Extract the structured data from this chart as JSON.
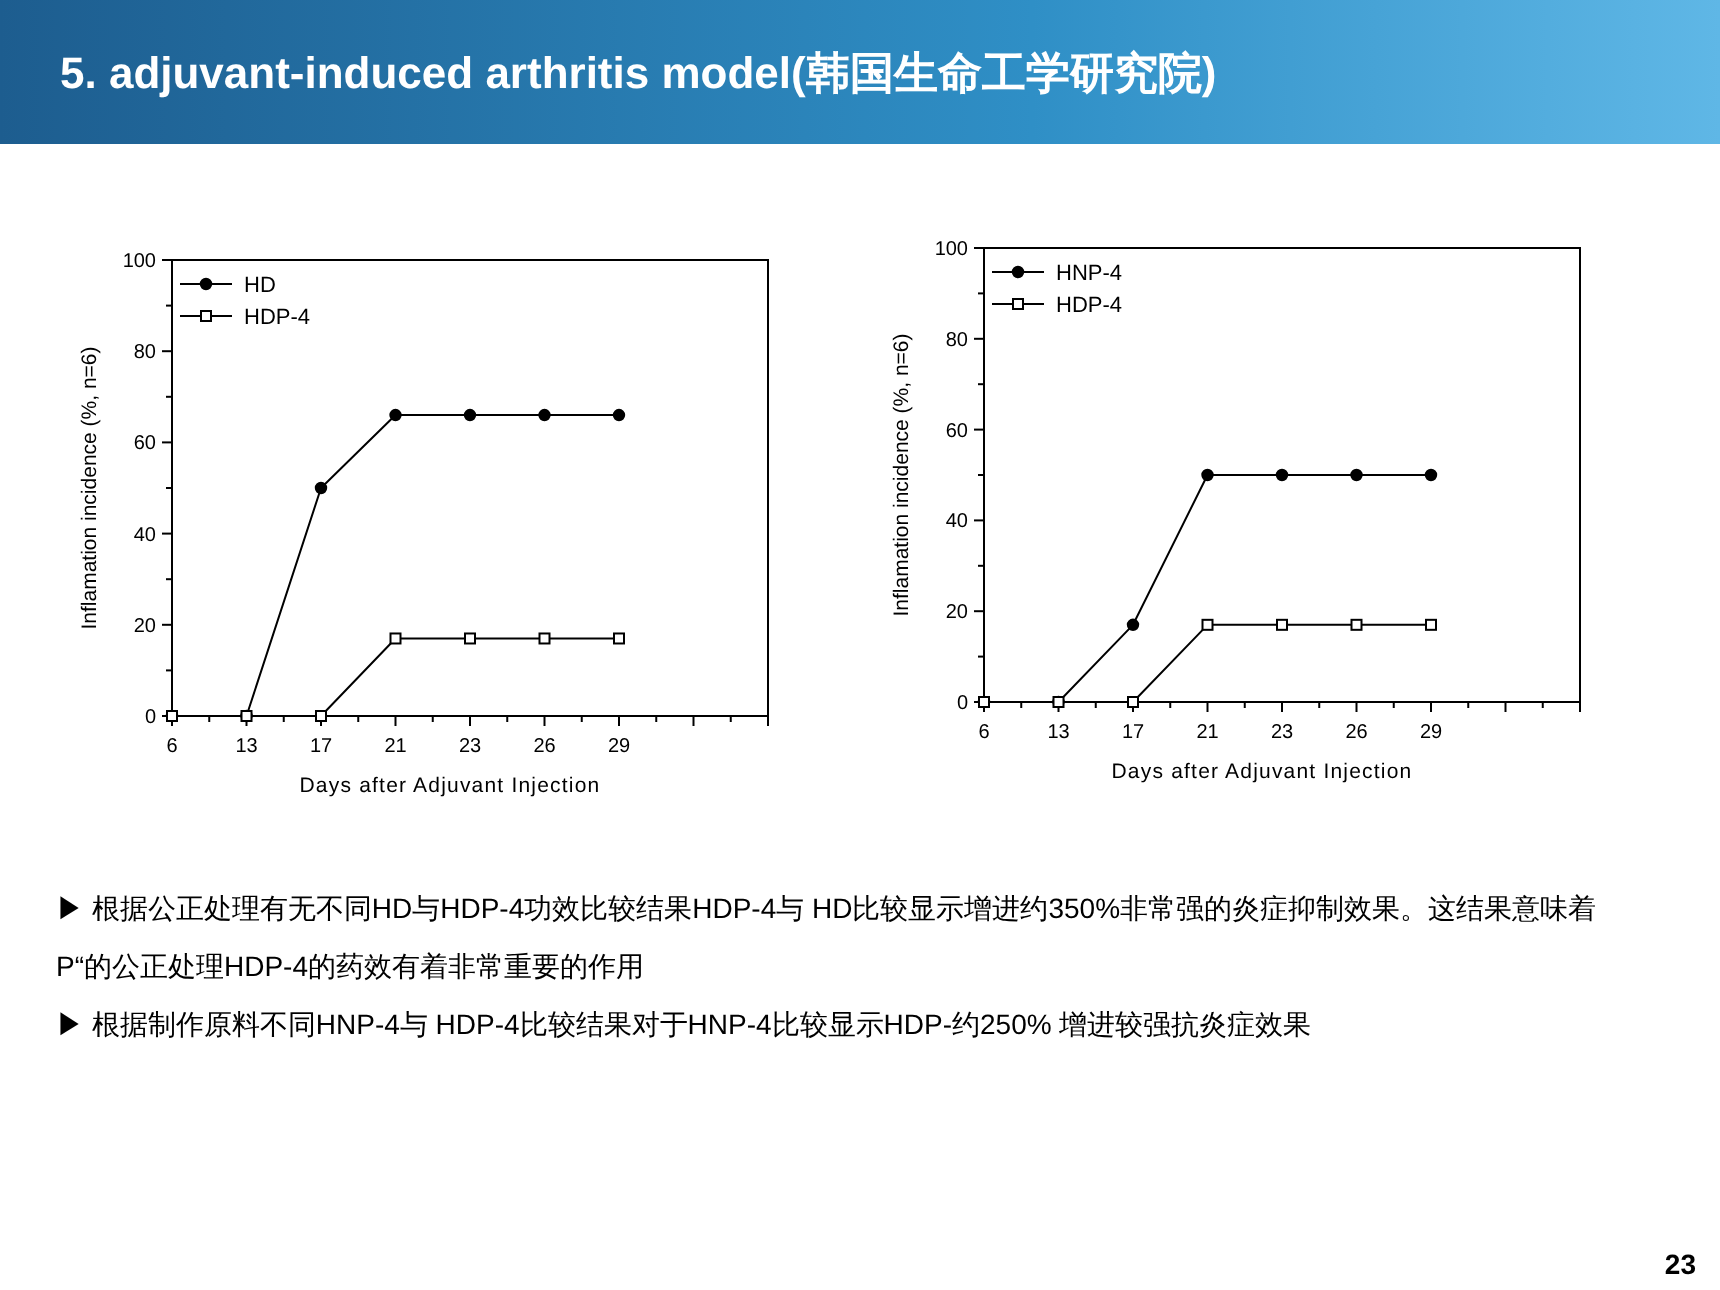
{
  "chart_data": [
    {
      "type": "line",
      "title": "5. adjuvant-induced arthritis model(韩国生命工学研究院)",
      "xlabel": "Days after Adjuvant Injection",
      "ylabel": "Inflamation incidence (%, n=6)",
      "categories": [
        "6",
        "13",
        "17",
        "21",
        "23",
        "26",
        "29",
        null
      ],
      "ylim": [
        0,
        100
      ],
      "yticks": [
        0,
        20,
        40,
        60,
        80,
        100
      ],
      "legend": "top left",
      "grid": false,
      "series": [
        {
          "name": "HD",
          "color": "#000000",
          "marker": "circle",
          "values": [
            0,
            0,
            50,
            66,
            66,
            66,
            66,
            null
          ]
        },
        {
          "name": "HDP-4",
          "color": "#000000",
          "marker": "square",
          "values": [
            0,
            0,
            0,
            17,
            17,
            17,
            17,
            null
          ]
        }
      ]
    },
    {
      "type": "line",
      "xlabel": "Days after Adjuvant Injection",
      "ylabel": "Inflamation incidence (%, n=6)",
      "categories": [
        "6",
        "13",
        "17",
        "21",
        "23",
        "26",
        "29",
        null
      ],
      "ylim": [
        0,
        100
      ],
      "yticks": [
        0,
        20,
        40,
        60,
        80,
        100
      ],
      "legend": "top left",
      "grid": false,
      "series": [
        {
          "name": "HNP-4",
          "color": "#000000",
          "marker": "circle",
          "values": [
            0,
            0,
            17,
            50,
            50,
            50,
            50,
            null
          ]
        },
        {
          "name": "HDP-4",
          "color": "#000000",
          "marker": "square",
          "values": [
            0,
            0,
            0,
            17,
            17,
            17,
            17,
            null
          ]
        }
      ],
      "annotations": [
        "▶ 根据公正处理有无不同HD与HDP-4功效比较结果HDP-4与 HD比较显示增进约350%非常强的炎症抑制效果。这结果意味着P“的公正处理HDP-4的药效有着非常重要的作用",
        "▶ 根据制作原料不同HNP-4与 HDP-4比较结果对于HNP-4比较显示HDP-约250% 增进较强抗炎症效果",
        "23"
      ]
    }
  ]
}
